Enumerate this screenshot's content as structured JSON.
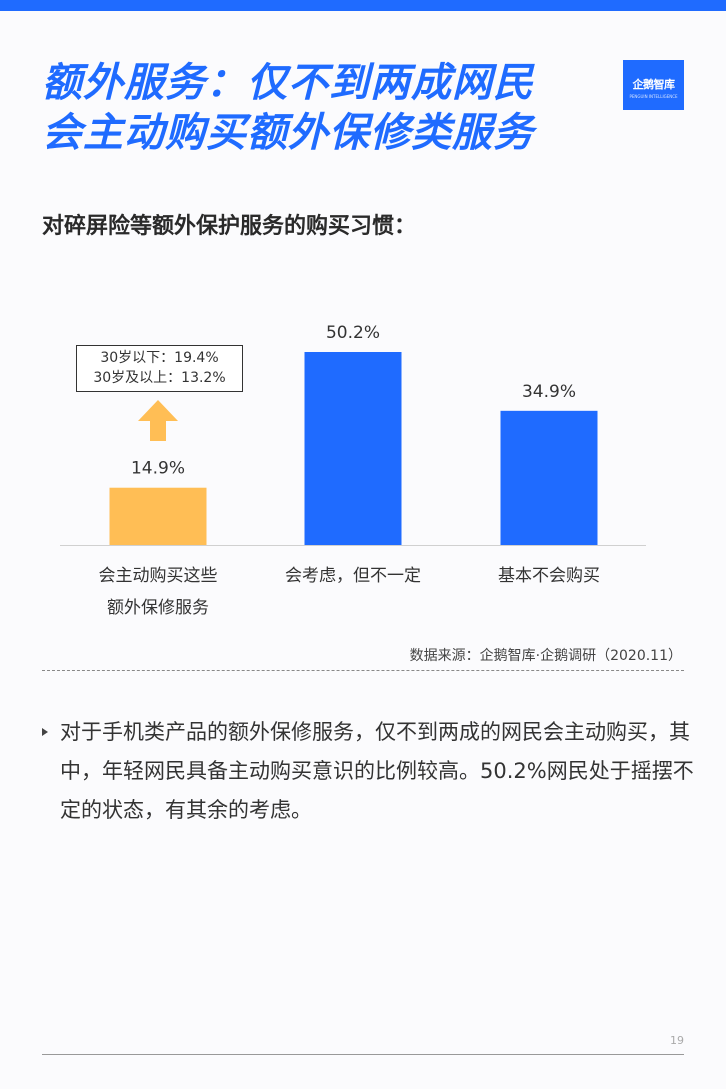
{
  "header": {
    "title_line1": "额外服务：仅不到两成网民",
    "title_line2": "会主动购买额外保修类服务",
    "logo_text": "企鹅智库",
    "logo_sub": "PENGUIN INTELLIGENCE"
  },
  "colors": {
    "accent": "#1f6bff",
    "highlight": "#ffbe55",
    "bar_default": "#1f6bff"
  },
  "subtitle": "对碎屏险等额外保护服务的购买习惯：",
  "chart_data": {
    "type": "bar",
    "categories": [
      [
        "会主动购买这些",
        "额外保修服务"
      ],
      [
        "会考虑，但不一定"
      ],
      [
        "基本不会购买"
      ]
    ],
    "values": [
      14.9,
      50.2,
      34.9
    ],
    "value_labels": [
      "14.9%",
      "50.2%",
      "34.9%"
    ],
    "ylim": [
      0,
      55
    ],
    "highlight_index": 0,
    "grid": false,
    "annotation": {
      "lines": [
        "30岁以下：19.4%",
        "30岁及以上：13.2%"
      ]
    }
  },
  "source": "数据来源：企鹅智库·企鹅调研（2020.11）",
  "body_text": "对于手机类产品的额外保修服务，仅不到两成的网民会主动购买，其中，年轻网民具备主动购买意识的比例较高。50.2%网民处于摇摆不定的状态，有其余的考虑。",
  "page_number": "19"
}
